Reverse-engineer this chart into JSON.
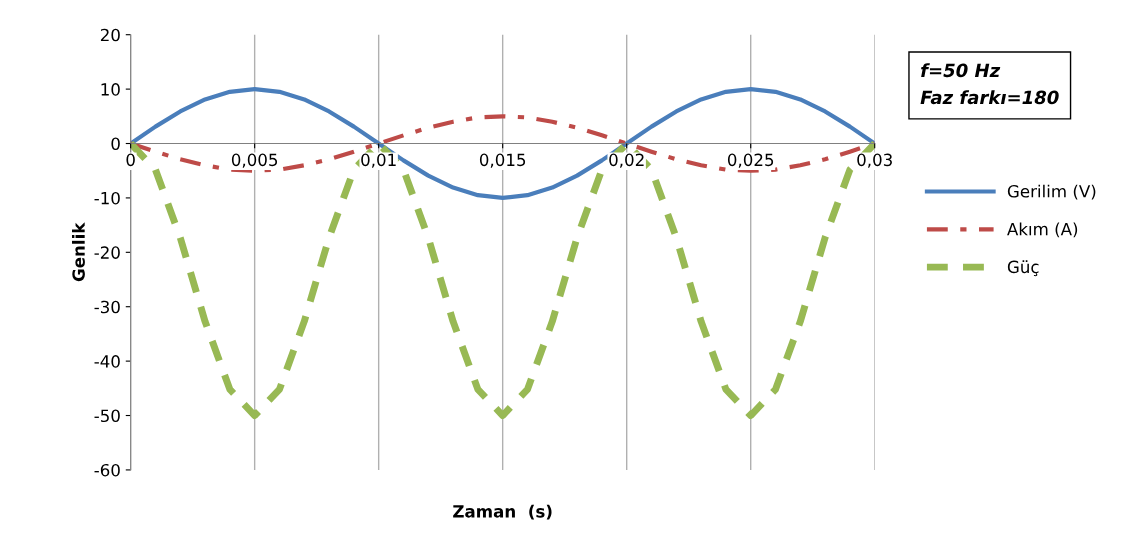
{
  "chart_data": {
    "type": "line",
    "xlabel": "Zaman  (s)",
    "ylabel": "Genlik",
    "x": [
      0,
      0.001,
      0.002,
      0.003,
      0.004,
      0.005,
      0.006,
      0.007,
      0.008,
      0.009,
      0.01,
      0.011,
      0.012,
      0.013,
      0.014,
      0.015,
      0.016,
      0.017,
      0.018,
      0.019,
      0.02,
      0.021,
      0.022,
      0.023,
      0.024,
      0.025,
      0.026,
      0.027,
      0.028,
      0.029,
      0.03
    ],
    "series": [
      {
        "name": "Gerilim (V)",
        "color": "#4a7ebb",
        "line_style": "solid",
        "values": [
          0,
          3.1,
          5.9,
          8.1,
          9.5,
          10,
          9.5,
          8.1,
          5.9,
          3.1,
          0,
          -3.1,
          -5.9,
          -8.1,
          -9.5,
          -10,
          -9.5,
          -8.1,
          -5.9,
          -3.1,
          0,
          3.1,
          5.9,
          8.1,
          9.5,
          10,
          9.5,
          8.1,
          5.9,
          3.1,
          0
        ]
      },
      {
        "name": "Akım (A)",
        "color": "#be4b48",
        "line_style": "dotted",
        "values": [
          0,
          -1.5,
          -2.9,
          -4,
          -4.8,
          -5,
          -4.8,
          -4,
          -2.9,
          -1.5,
          0,
          1.5,
          2.9,
          4,
          4.8,
          5,
          4.8,
          4,
          2.9,
          1.5,
          0,
          -1.5,
          -2.9,
          -4,
          -4.8,
          -5,
          -4.8,
          -4,
          -2.9,
          -1.5,
          0
        ]
      },
      {
        "name": "Güç",
        "color": "#98b954",
        "line_style": "dashed",
        "values": [
          0,
          -4.8,
          -17.3,
          -32.7,
          -45.2,
          -50,
          -45.2,
          -32.7,
          -17.3,
          -4.8,
          0,
          -4.8,
          -17.3,
          -32.7,
          -45.2,
          -50,
          -45.2,
          -32.7,
          -17.3,
          -4.8,
          0,
          -4.8,
          -17.3,
          -32.7,
          -45.2,
          -50,
          -45.2,
          -32.7,
          -17.3,
          -4.8,
          0
        ]
      }
    ],
    "xlim": [
      0,
      0.03
    ],
    "xticks": [
      {
        "value": 0,
        "label": "0"
      },
      {
        "value": 0.005,
        "label": "0,005"
      },
      {
        "value": 0.01,
        "label": "0,01"
      },
      {
        "value": 0.015,
        "label": "0,015"
      },
      {
        "value": 0.02,
        "label": "0,02"
      },
      {
        "value": 0.025,
        "label": "0,025"
      },
      {
        "value": 0.03,
        "label": "0,03"
      }
    ],
    "ylim": [
      -60,
      20
    ],
    "yticks": [
      -60,
      -50,
      -40,
      -30,
      -20,
      -10,
      0,
      10,
      20
    ],
    "grid": "x",
    "legend": "right",
    "annotations": [
      "f=50 Hz",
      "Faz farkı=180"
    ]
  }
}
